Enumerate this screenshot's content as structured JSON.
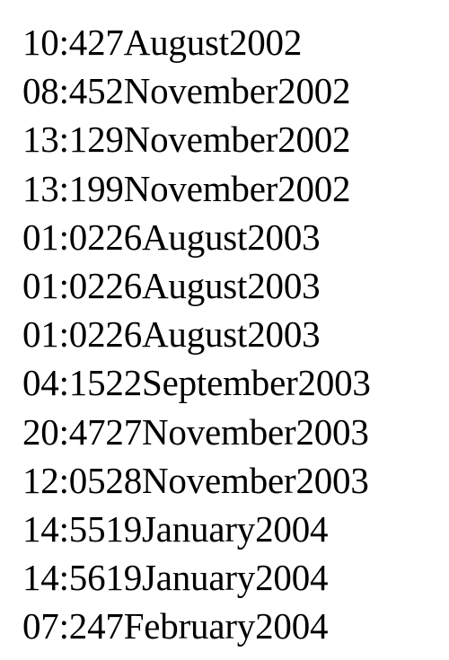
{
  "lines": [
    "10:427August2002",
    "08:452November2002",
    "13:129November2002",
    "13:199November2002",
    "01:0226August2003",
    "01:0226August2003",
    "01:0226August2003",
    "04:1522September2003",
    "20:4727November2003",
    "12:0528November2003",
    "14:5519January2004",
    "14:5619January2004",
    "07:247February2004"
  ]
}
